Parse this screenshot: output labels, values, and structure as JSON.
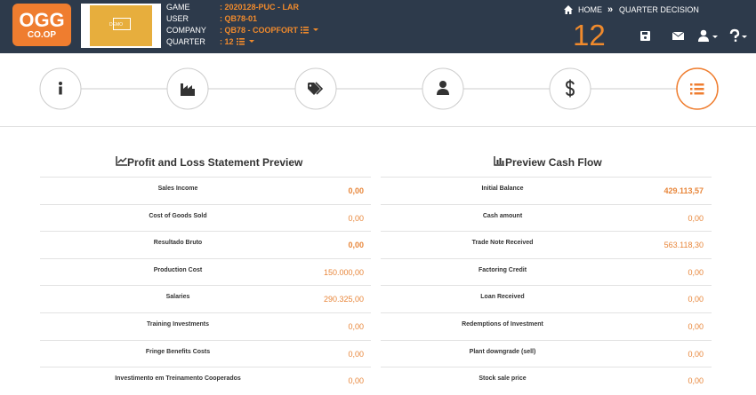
{
  "header": {
    "logo": {
      "top": "OGG",
      "bottom": "CO.OP"
    },
    "demo_label": "DEMO",
    "info": [
      {
        "label": "GAME",
        "value": ": 2020128-PUC - LAR"
      },
      {
        "label": "USER",
        "value": ": QB78-01"
      },
      {
        "label": "COMPANY",
        "value": ": QB78 - COOPFORT"
      },
      {
        "label": "QUARTER",
        "value": ": 12"
      }
    ],
    "breadcrumb": {
      "home": "HOME",
      "separator": "»",
      "current": "QUARTER DECISION"
    },
    "quarter_number": "12"
  },
  "profit_loss": {
    "title": "Profit and Loss Statement Preview",
    "rows": [
      [
        "Sales Income",
        "0,00"
      ],
      [
        "Cost of Goods Sold",
        "0,00"
      ],
      [
        "Resultado Bruto",
        "0,00"
      ],
      [
        "Production Cost",
        "150.000,00"
      ],
      [
        "Salaries",
        "290.325,00"
      ],
      [
        "Training Investments",
        "0,00"
      ],
      [
        "Fringe Benefits Costs",
        "0,00"
      ],
      [
        "Investimento em Treinamento Cooperados",
        "0,00"
      ]
    ]
  },
  "cash_flow": {
    "title": "Preview Cash Flow",
    "rows": [
      [
        "Initial Balance",
        "429.113,57"
      ],
      [
        "Cash amount",
        "0,00"
      ],
      [
        "Trade Note Received",
        "563.118,30"
      ],
      [
        "Factoring Credit",
        "0,00"
      ],
      [
        "Loan Received",
        "0,00"
      ],
      [
        "Redemptions of Investment",
        "0,00"
      ],
      [
        "Plant downgrade (sell)",
        "0,00"
      ],
      [
        "Stock sale price",
        "0,00"
      ]
    ]
  }
}
